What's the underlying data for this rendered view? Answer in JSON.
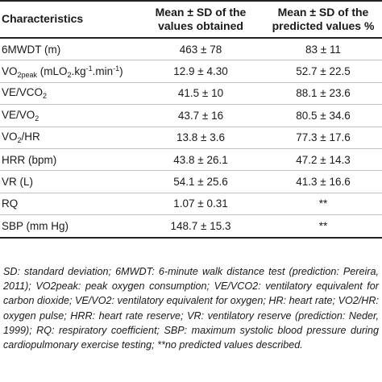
{
  "table": {
    "headers": [
      "Characteristics",
      "Mean ± SD of the values obtained",
      "Mean ± SD of the predicted values %"
    ],
    "rows": [
      {
        "name": "6MWDT (m)",
        "mean": "463 ± 78",
        "pred": "83 ± 11"
      },
      {
        "name": "VO2peak (mLO2.kg-1.min-1)",
        "name_parts": {
          "a": "VO",
          "b": "2peak",
          "c": " (mLO",
          "d": "2",
          "e": ".kg",
          "f": "-1",
          "g": ".min",
          "h": "-1",
          "i": ")"
        },
        "mean": "12.9 ± 4.30",
        "pred": "52.7 ± 22.5"
      },
      {
        "name": "VE/VCO2",
        "name_parts": {
          "a": "VE/VCO",
          "b": "2"
        },
        "mean": "41.5 ± 10",
        "pred": "88.1 ± 23.6"
      },
      {
        "name": "VE/VO2",
        "name_parts": {
          "a": "VE/VO",
          "b": "2"
        },
        "mean": "43.7 ± 16",
        "pred": "80.5 ± 34.6"
      },
      {
        "name": "VO2/HR",
        "name_parts": {
          "a": "VO",
          "b": "2",
          "c": "/HR"
        },
        "mean": "13.8 ± 3.6",
        "pred": "77.3 ± 17.6"
      },
      {
        "name": "HRR (bpm)",
        "mean": "43.8 ± 26.1",
        "pred": "47.2 ± 14.3"
      },
      {
        "name": "VR (L)",
        "mean": "54.1 ± 25.6",
        "pred": "41.3 ± 16.6"
      },
      {
        "name": "RQ",
        "mean": "1.07 ± 0.31",
        "pred": "**"
      },
      {
        "name": "SBP (mm Hg)",
        "mean": "148.7 ± 15.3",
        "pred": "**"
      }
    ]
  },
  "footnote": "SD: standard deviation; 6MWDT: 6-minute walk distance test (prediction: Pereira, 2011); VO2peak: peak oxygen consumption; VE/VCO2: ventilatory equivalent for carbon dioxide; VE/VO2: ventilatory equivalent for oxygen; HR: heart rate; VO2/HR: oxygen pulse; HRR: heart rate reserve; VR: ventilatory reserve (prediction: Neder, 1999); RQ: respiratory coefficient; SBP: maximum systolic blood pressure during cardiopulmonary exercise testing; **no predicted values described."
}
